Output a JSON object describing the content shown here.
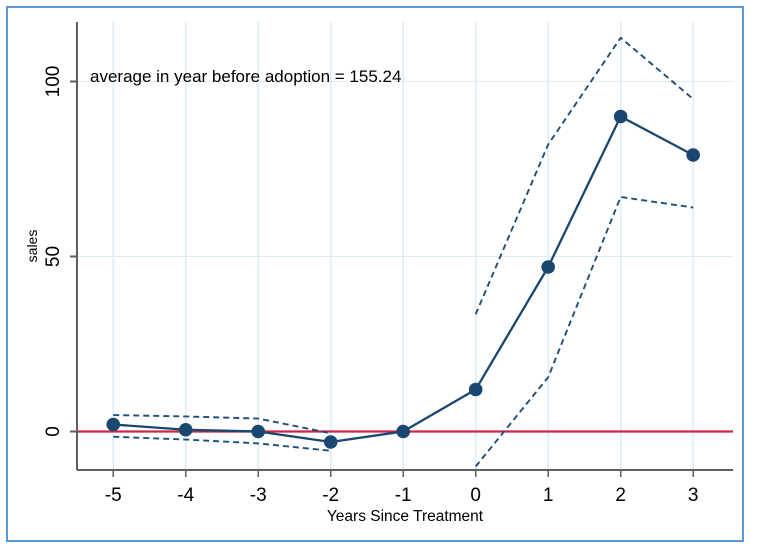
{
  "chart_data": {
    "type": "line",
    "annotation": "average in year before adoption = 155.24",
    "xlabel": "Years Since Treatment",
    "ylabel": "sales",
    "x_ticks": [
      "-5",
      "-4",
      "-3",
      "-2",
      "-1",
      "0",
      "1",
      "2",
      "3"
    ],
    "y_ticks": [
      "0",
      "50",
      "100"
    ],
    "x_tick_values": [
      -5,
      -4,
      -3,
      -2,
      -1,
      0,
      1,
      2,
      3
    ],
    "y_tick_values": [
      0,
      50,
      100
    ],
    "xlim": [
      -5.5,
      3.55
    ],
    "ylim": [
      -11,
      117
    ],
    "grid": true,
    "legend": "none",
    "reference_line_y": 0,
    "series": [
      {
        "name": "point-estimate",
        "style": "solid-markers",
        "x": [
          -5,
          -4,
          -3,
          -2,
          -1,
          0,
          1,
          2,
          3
        ],
        "y": [
          2,
          0.5,
          0,
          -3,
          0,
          12,
          47,
          90,
          79
        ]
      },
      {
        "name": "ci-upper-pre",
        "style": "dashed",
        "x": [
          -5,
          -4,
          -3,
          -2
        ],
        "y": [
          4.7,
          4.3,
          3.7,
          -0.5
        ]
      },
      {
        "name": "ci-lower-pre",
        "style": "dashed",
        "x": [
          -5,
          -4,
          -3,
          -2
        ],
        "y": [
          -1.5,
          -2.3,
          -3.4,
          -5.5
        ]
      },
      {
        "name": "ci-upper-post",
        "style": "dashed",
        "x": [
          0,
          1,
          2,
          3
        ],
        "y": [
          33.5,
          82,
          112.5,
          95
        ]
      },
      {
        "name": "ci-lower-post",
        "style": "dashed",
        "x": [
          0,
          1,
          2,
          3
        ],
        "y": [
          -10,
          15.5,
          67,
          64
        ]
      }
    ],
    "colors": {
      "line": "#1a476f",
      "marker": "#1a476f",
      "ci": "#1f4e79",
      "reference": "#cf2449",
      "grid": "#dfecf3",
      "axis": "#5f5f5f",
      "frame_border": "#5b9bd5",
      "background": "#ffffff",
      "text": "#000000"
    }
  }
}
